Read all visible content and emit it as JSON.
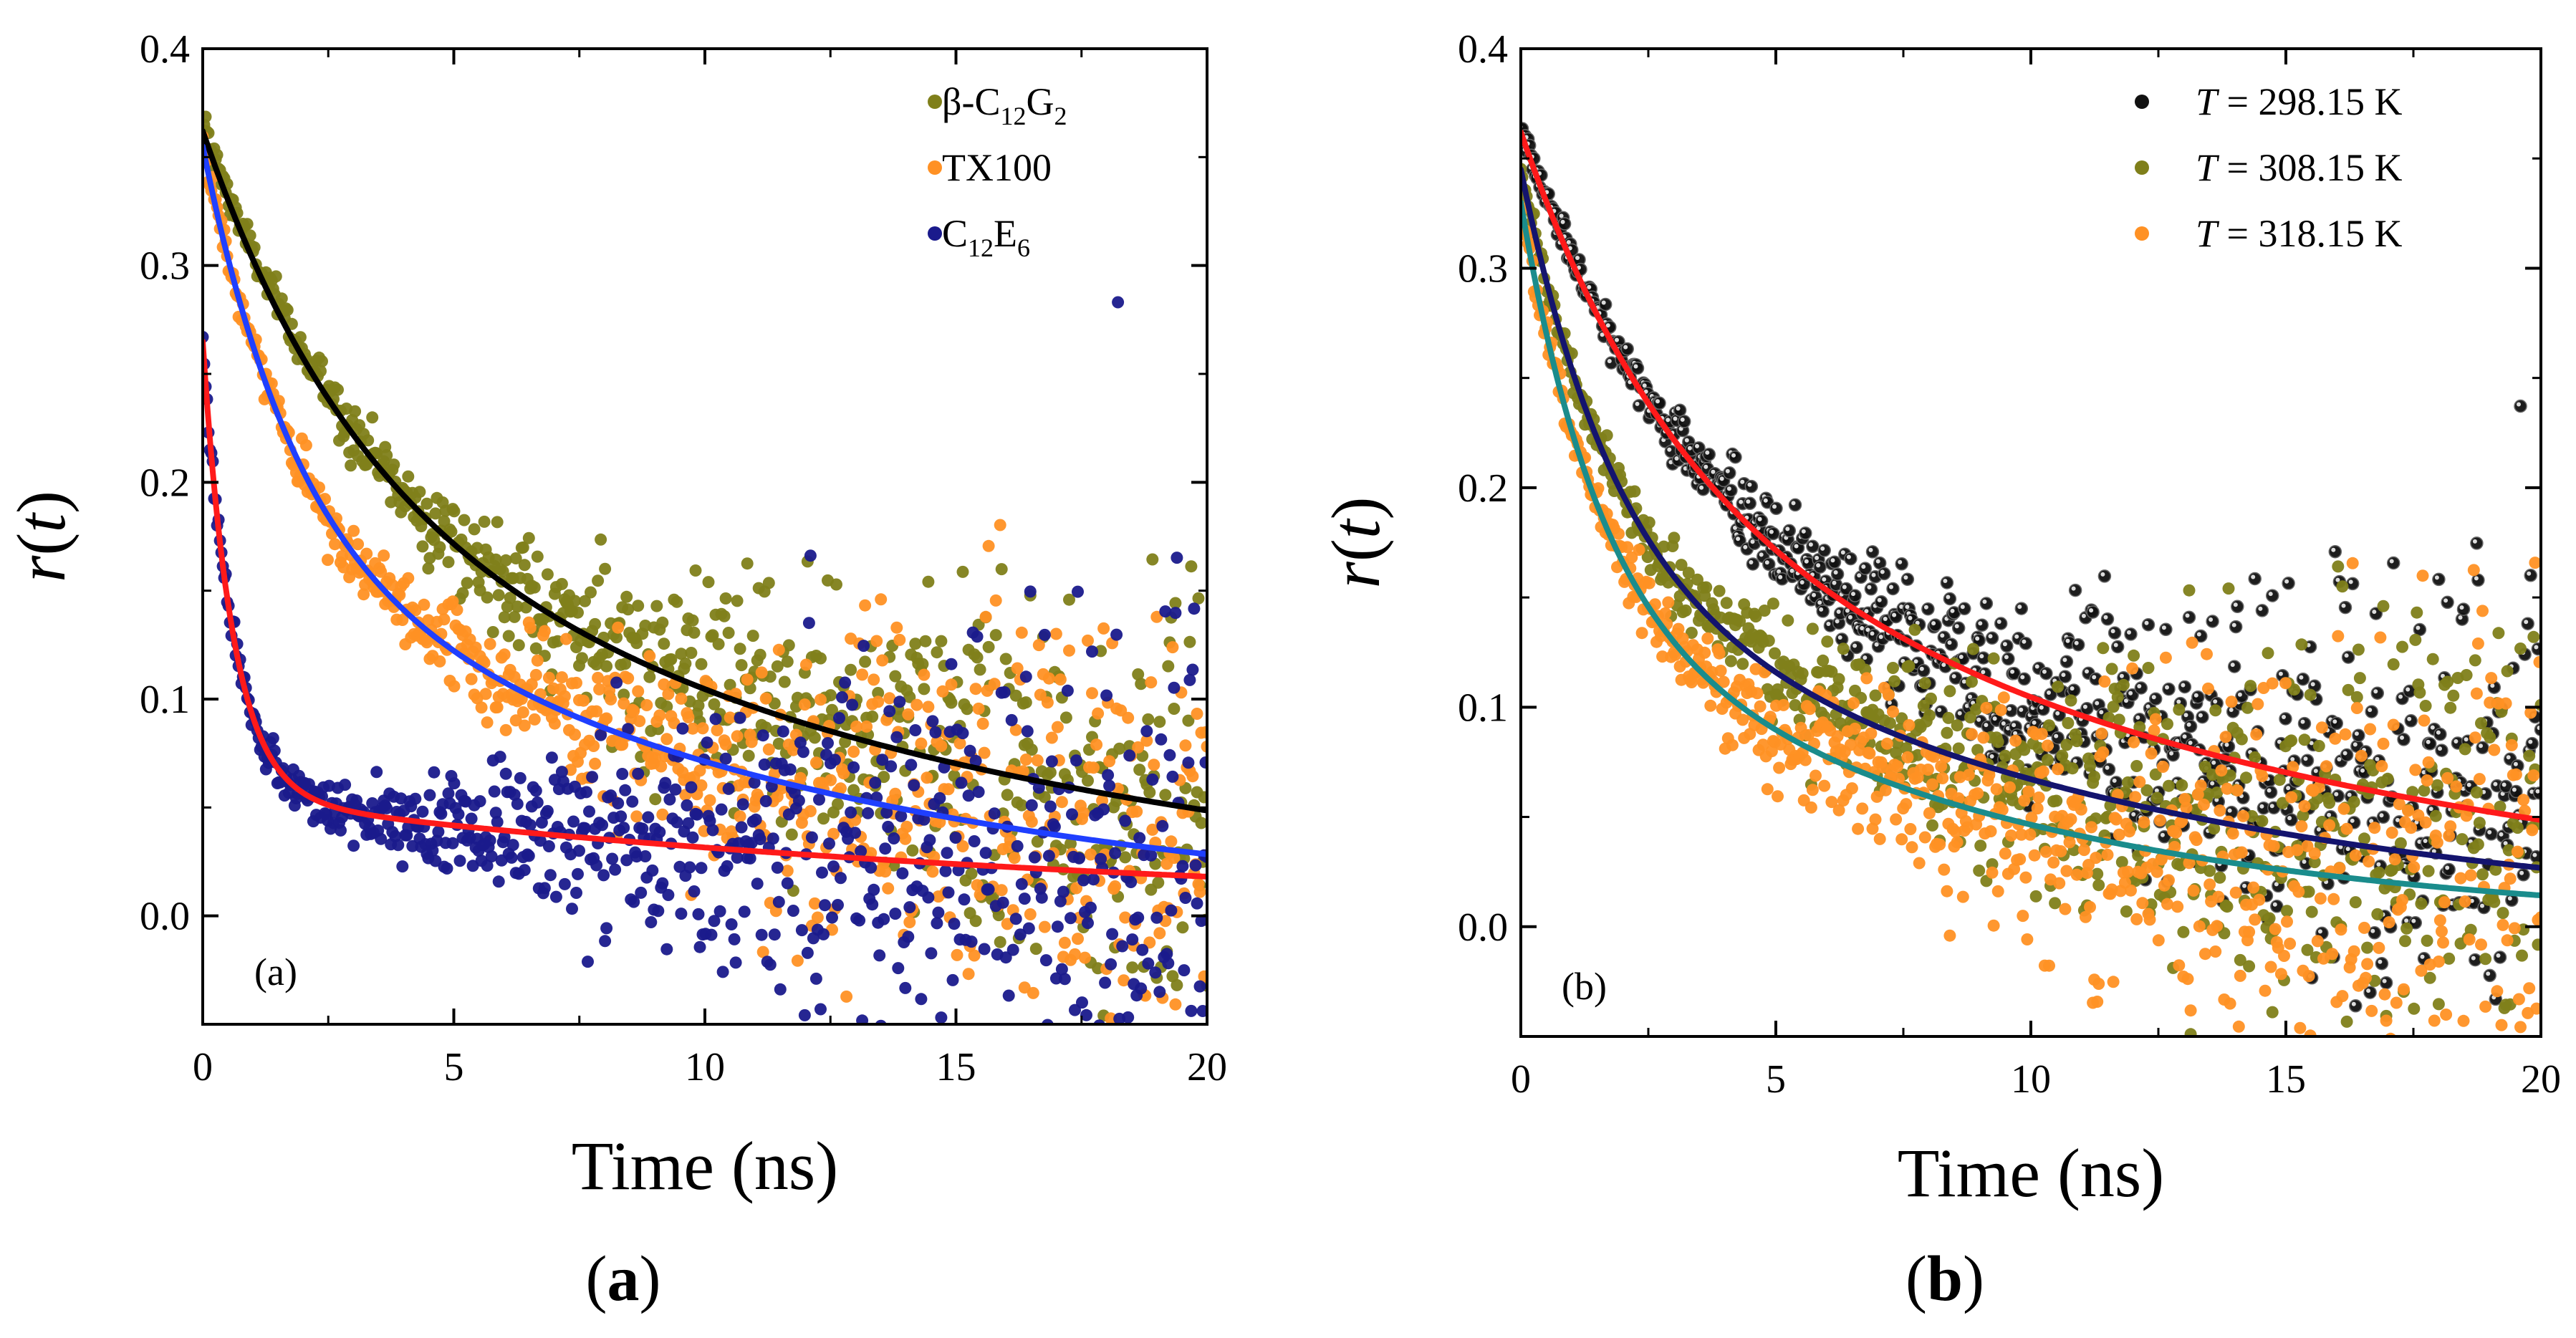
{
  "figure": {
    "captions": [
      "(a)",
      "(b)"
    ]
  },
  "chart_data": [
    {
      "type": "scatter",
      "panel_label": "(a)",
      "caption": "(a)",
      "xlabel": "Time (ns)",
      "ylabel": "r(t)",
      "xlim": [
        0,
        20
      ],
      "ylim": [
        -0.05,
        0.4
      ],
      "x_ticks": [
        0,
        5,
        10,
        15,
        20
      ],
      "y_ticks": [
        0.0,
        0.1,
        0.2,
        0.3,
        0.4
      ],
      "grid": false,
      "legend_position": "top-right",
      "series": [
        {
          "name": "β-C₁₂G₂",
          "legend": {
            "base": "β-C",
            "sub1": "12",
            "mid": "G",
            "sub2": "2"
          },
          "color": "#7f7f1a",
          "model": {
            "r0": 0.365,
            "a1": 0.16,
            "tau1": 3.0,
            "tau2": 14.0
          },
          "noise_start": 0.004,
          "noise_end": 0.06,
          "n_points": 700
        },
        {
          "name": "TX100",
          "legend": {
            "base": "TX100"
          },
          "color": "#ff9124",
          "model": {
            "r0": 0.355,
            "a1": 0.18,
            "tau1": 1.8,
            "tau2": 11.0
          },
          "noise_start": 0.004,
          "noise_end": 0.07,
          "n_points": 700
        },
        {
          "name": "C₁₂E₆",
          "legend": {
            "base": "C",
            "sub1": "12",
            "mid": "E",
            "sub2": "6"
          },
          "color": "#1a1a8c",
          "model": {
            "r0": 0.265,
            "a1": 0.21,
            "tau1": 0.6,
            "tau2": 18.0
          },
          "noise_start": 0.003,
          "noise_end": 0.08,
          "n_points": 700
        }
      ],
      "fits": [
        {
          "for": "β-C₁₂G₂",
          "color": "#000000",
          "model": {
            "r0": 0.362,
            "a1": 0.16,
            "tau1": 3.0,
            "tau2": 14.0
          },
          "x_range": [
            0,
            20
          ]
        },
        {
          "for": "TX100",
          "color": "#1f3fff",
          "model": {
            "r0": 0.355,
            "a1": 0.18,
            "tau1": 1.8,
            "tau2": 11.0
          },
          "x_range": [
            0,
            20
          ]
        },
        {
          "for": "C₁₂E₆",
          "color": "#ff1a1a",
          "model": {
            "r0": 0.265,
            "a1": 0.21,
            "tau1": 0.6,
            "tau2": 18.0
          },
          "x_range": [
            0,
            20
          ]
        }
      ]
    },
    {
      "type": "scatter",
      "panel_label": "(b)",
      "caption": "(b)",
      "xlabel": "Time (ns)",
      "ylabel": "r(t)",
      "xlim": [
        0,
        20
      ],
      "ylim": [
        -0.05,
        0.4
      ],
      "x_ticks": [
        0,
        5,
        10,
        15,
        20
      ],
      "y_ticks": [
        0.0,
        0.1,
        0.2,
        0.3,
        0.4
      ],
      "grid": false,
      "legend_position": "top-right",
      "series": [
        {
          "name": "T = 298.15 K",
          "legend": {
            "italic": "T",
            "rest": " = 298.15 K"
          },
          "color": "#111111",
          "highlight": true,
          "model": {
            "r0": 0.365,
            "a1": 0.16,
            "tau1": 3.0,
            "tau2": 14.0
          },
          "noise_start": 0.004,
          "noise_end": 0.06,
          "n_points": 700
        },
        {
          "name": "T = 308.15 K",
          "legend": {
            "italic": "T",
            "rest": " = 308.15 K"
          },
          "color": "#7f7f1a",
          "model": {
            "r0": 0.345,
            "a1": 0.18,
            "tau1": 1.8,
            "tau2": 11.0
          },
          "noise_start": 0.004,
          "noise_end": 0.07,
          "n_points": 700
        },
        {
          "name": "T = 318.15 K",
          "legend": {
            "italic": "T",
            "rest": " = 318.15 K"
          },
          "color": "#ff9124",
          "model": {
            "r0": 0.33,
            "a1": 0.18,
            "tau1": 1.5,
            "tau2": 8.5
          },
          "noise_start": 0.004,
          "noise_end": 0.08,
          "n_points": 700
        }
      ],
      "fits": [
        {
          "for": "T = 298.15 K",
          "color": "#ff1a1a",
          "model": {
            "r0": 0.362,
            "a1": 0.16,
            "tau1": 3.0,
            "tau2": 14.0
          },
          "x_range": [
            0,
            20
          ]
        },
        {
          "for": "T = 308.15 K",
          "color": "#14146e",
          "model": {
            "r0": 0.345,
            "a1": 0.18,
            "tau1": 1.8,
            "tau2": 11.0
          },
          "x_range": [
            0,
            20
          ]
        },
        {
          "for": "T = 318.15 K",
          "color": "#1a8c8c",
          "model": {
            "r0": 0.33,
            "a1": 0.18,
            "tau1": 1.5,
            "tau2": 8.5
          },
          "x_range": [
            0,
            20
          ]
        }
      ]
    }
  ]
}
